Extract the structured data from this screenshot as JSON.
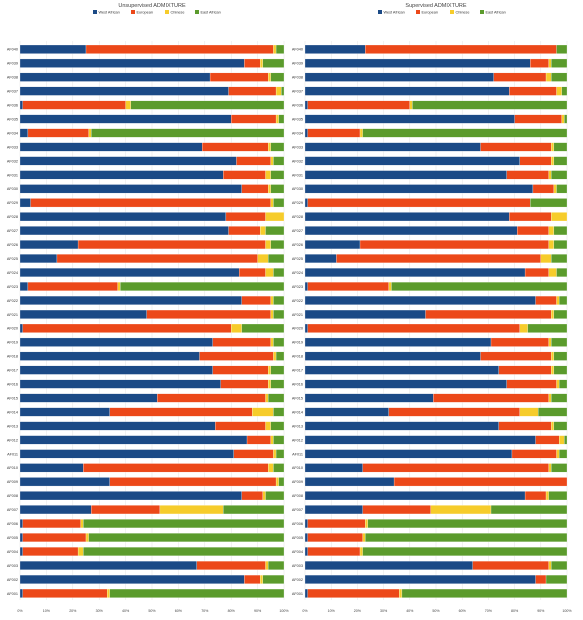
{
  "colors": {
    "West African": "#1b4a86",
    "European": "#ec4819",
    "Chinese": "#f6cc2b",
    "East African": "#5b9b2c"
  },
  "chart_data": [
    {
      "type": "bar",
      "orientation": "horizontal-stacked-100",
      "title": "Unsupervised ADMIXTURE",
      "legend": [
        "West African",
        "European",
        "Chinese",
        "East African"
      ],
      "legend_position": "top",
      "x_ticks": [
        "0%",
        "10%",
        "20%",
        "30%",
        "40%",
        "50%",
        "60%",
        "70%",
        "80%",
        "90%",
        "100%"
      ],
      "xlim": [
        0,
        100
      ],
      "categories": [
        "AF040",
        "AF039",
        "AF038",
        "AF037",
        "AF036",
        "AF035",
        "AF034",
        "AF033",
        "AF032",
        "AF031",
        "AF030",
        "AF029",
        "AF028",
        "AF027",
        "AF026",
        "AF025",
        "AF024",
        "AF023",
        "AF022",
        "AF021",
        "AF020",
        "AF019",
        "AF018",
        "AF017",
        "AF016",
        "AF015",
        "AF014",
        "AF013",
        "AF012",
        "AF011",
        "AF010",
        "AF009",
        "AF008",
        "AF007",
        "AF006",
        "AF005",
        "AF004",
        "AF003",
        "AF002",
        "AF001"
      ],
      "series": [
        {
          "name": "West African",
          "values": [
            25,
            85,
            72,
            79,
            1,
            80,
            3,
            69,
            82,
            77,
            84,
            4,
            78,
            79,
            22,
            14,
            83,
            3,
            84,
            48,
            1,
            73,
            68,
            73,
            76,
            52,
            34,
            74,
            86,
            81,
            24,
            34,
            84,
            27,
            1,
            1,
            1,
            67,
            85,
            1
          ]
        },
        {
          "name": "European",
          "values": [
            71,
            6,
            22,
            18,
            39,
            17,
            23,
            25,
            13,
            16,
            10,
            91,
            15,
            12,
            71,
            76,
            10,
            34,
            11,
            47,
            79,
            22,
            28,
            21,
            18,
            41,
            54,
            19,
            9,
            15,
            70,
            63,
            8,
            26,
            22,
            24,
            21,
            26,
            6,
            32
          ]
        },
        {
          "name": "Chinese",
          "values": [
            1,
            1,
            1,
            2,
            2,
            1,
            1,
            1,
            1,
            2,
            1,
            1,
            7,
            2,
            2,
            4,
            3,
            1,
            1,
            1,
            4,
            1,
            1,
            1,
            1,
            1,
            8,
            2,
            1,
            1,
            2,
            1,
            1,
            24,
            1,
            1,
            2,
            1,
            1,
            1
          ]
        },
        {
          "name": "East African",
          "values": [
            3,
            8,
            5,
            1,
            58,
            2,
            73,
            5,
            4,
            5,
            5,
            4,
            0,
            7,
            5,
            6,
            4,
            62,
            4,
            4,
            16,
            4,
            3,
            5,
            5,
            6,
            4,
            5,
            4,
            3,
            4,
            2,
            7,
            23,
            76,
            74,
            76,
            6,
            8,
            66
          ]
        }
      ]
    },
    {
      "type": "bar",
      "orientation": "horizontal-stacked-100",
      "title": "Supervised ADMIXTURE",
      "legend": [
        "West African",
        "European",
        "Chinese",
        "East African"
      ],
      "legend_position": "top",
      "x_ticks": [
        "0%",
        "10%",
        "20%",
        "30%",
        "40%",
        "50%",
        "60%",
        "70%",
        "80%",
        "90%",
        "100%"
      ],
      "xlim": [
        0,
        100
      ],
      "categories": [
        "AF040",
        "AF039",
        "AF038",
        "AF037",
        "AF036",
        "AF035",
        "AF034",
        "AF033",
        "AF032",
        "AF031",
        "AF030",
        "AF029",
        "AF028",
        "AF027",
        "AF026",
        "AF025",
        "AF024",
        "AF023",
        "AF022",
        "AF021",
        "AF020",
        "AF019",
        "AF018",
        "AF017",
        "AF016",
        "AF015",
        "AF014",
        "AF013",
        "AF012",
        "AF011",
        "AF010",
        "AF009",
        "AF008",
        "AF007",
        "AF006",
        "AF005",
        "AF004",
        "AF003",
        "AF002",
        "AF001"
      ],
      "series": [
        {
          "name": "West African",
          "values": [
            23,
            86,
            72,
            78,
            1,
            80,
            1,
            67,
            82,
            77,
            87,
            1,
            78,
            81,
            21,
            12,
            84,
            1,
            88,
            46,
            1,
            71,
            67,
            74,
            77,
            49,
            32,
            74,
            88,
            79,
            22,
            34,
            84,
            22,
            1,
            1,
            1,
            64,
            88,
            1
          ]
        },
        {
          "name": "European",
          "values": [
            73,
            7,
            20,
            18,
            39,
            18,
            20,
            27,
            12,
            16,
            8,
            85,
            16,
            12,
            72,
            78,
            9,
            31,
            8,
            48,
            81,
            22,
            27,
            20,
            19,
            44,
            50,
            20,
            9,
            17,
            71,
            66,
            8,
            26,
            22,
            21,
            20,
            29,
            4,
            35
          ]
        },
        {
          "name": "Chinese",
          "values": [
            0,
            1,
            2,
            2,
            1,
            1,
            1,
            1,
            1,
            1,
            1,
            0,
            6,
            2,
            2,
            4,
            3,
            1,
            1,
            1,
            3,
            1,
            1,
            1,
            1,
            1,
            7,
            1,
            2,
            1,
            1,
            0,
            1,
            23,
            1,
            1,
            1,
            1,
            0,
            1
          ]
        },
        {
          "name": "East African",
          "values": [
            4,
            6,
            6,
            2,
            59,
            1,
            78,
            5,
            5,
            6,
            4,
            14,
            0,
            5,
            5,
            6,
            4,
            67,
            3,
            5,
            15,
            6,
            5,
            5,
            3,
            6,
            11,
            5,
            1,
            3,
            6,
            0,
            7,
            29,
            76,
            77,
            78,
            6,
            8,
            63
          ]
        }
      ]
    }
  ]
}
